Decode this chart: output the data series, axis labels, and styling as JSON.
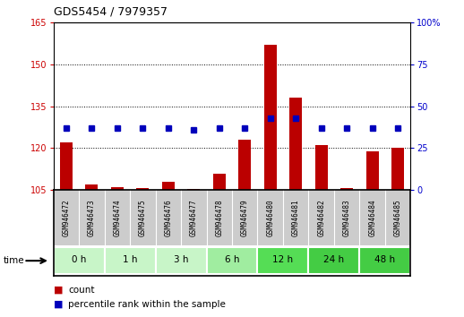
{
  "title": "GDS5454 / 7979357",
  "samples": [
    "GSM946472",
    "GSM946473",
    "GSM946474",
    "GSM946475",
    "GSM946476",
    "GSM946477",
    "GSM946478",
    "GSM946479",
    "GSM946480",
    "GSM946481",
    "GSM946482",
    "GSM946483",
    "GSM946484",
    "GSM946485"
  ],
  "count_values": [
    122.0,
    107.0,
    106.0,
    105.8,
    108.0,
    105.5,
    111.0,
    123.0,
    157.0,
    138.0,
    121.0,
    105.8,
    119.0,
    120.0
  ],
  "percentile_values": [
    37,
    37,
    37,
    37,
    37,
    36,
    37,
    37,
    43,
    43,
    37,
    37,
    37,
    37
  ],
  "time_groups": [
    {
      "label": "0 h",
      "count": 2,
      "color": "#c8f5c8"
    },
    {
      "label": "1 h",
      "count": 2,
      "color": "#c8f5c8"
    },
    {
      "label": "3 h",
      "count": 2,
      "color": "#c8f5c8"
    },
    {
      "label": "6 h",
      "count": 2,
      "color": "#a0eda0"
    },
    {
      "label": "12 h",
      "count": 2,
      "color": "#55dd55"
    },
    {
      "label": "24 h",
      "count": 2,
      "color": "#44cc44"
    },
    {
      "label": "48 h",
      "count": 2,
      "color": "#44cc44"
    }
  ],
  "ylim_left": [
    105,
    165
  ],
  "ylim_right": [
    0,
    100
  ],
  "yticks_left": [
    105,
    120,
    135,
    150,
    165
  ],
  "yticks_right": [
    0,
    25,
    50,
    75,
    100
  ],
  "hgrid_lines": [
    120,
    135,
    150
  ],
  "bar_color": "#bb0000",
  "dot_color": "#0000bb",
  "sample_bg": "#cccccc",
  "time_label": "time",
  "legend_count": "count",
  "legend_pct": "percentile rank within the sample",
  "title_fontsize": 9,
  "tick_fontsize": 7,
  "label_fontsize": 7.5,
  "bar_width": 0.5
}
